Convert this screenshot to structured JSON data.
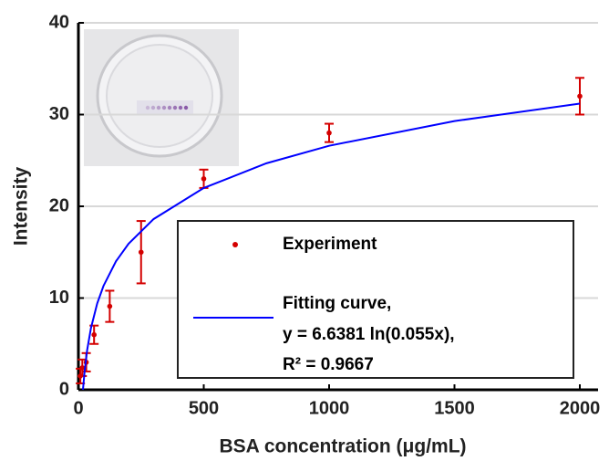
{
  "chart_data": {
    "type": "scatter",
    "xlabel": "BSA concentration (μg/mL)",
    "ylabel": "Intensity",
    "xlim": [
      0,
      2000
    ],
    "xticks": [
      0,
      500,
      1000,
      1500,
      2000
    ],
    "ylim": [
      0,
      40
    ],
    "yticks": [
      0,
      10,
      20,
      30,
      40
    ],
    "grid": true,
    "series": [
      {
        "name": "Experiment",
        "color": "#d40000",
        "kind": "errorbar",
        "x": [
          7.8,
          15.6,
          31.25,
          62.5,
          125,
          250,
          500,
          1000,
          2000
        ],
        "values": [
          1.5,
          2.4,
          3.0,
          6.0,
          9.1,
          15.0,
          23.0,
          28.0,
          32.0
        ],
        "errors": [
          0.8,
          0.9,
          1.0,
          1.0,
          1.7,
          3.4,
          1.0,
          1.0,
          2.0
        ]
      },
      {
        "name": "Fitting curve,",
        "color": "#0000ff",
        "kind": "line",
        "x": [
          18.18,
          25,
          35,
          50,
          75,
          100,
          150,
          200,
          300,
          500,
          750,
          1000,
          1500,
          2000
        ],
        "values": [
          0,
          2.11,
          4.35,
          6.72,
          9.41,
          11.32,
          14.01,
          15.92,
          18.61,
          22.0,
          24.69,
          26.6,
          29.29,
          31.2
        ],
        "equation": "y = 6.6381 ln(0.055x),",
        "r_squared": "R² = 0.9667"
      }
    ]
  }
}
